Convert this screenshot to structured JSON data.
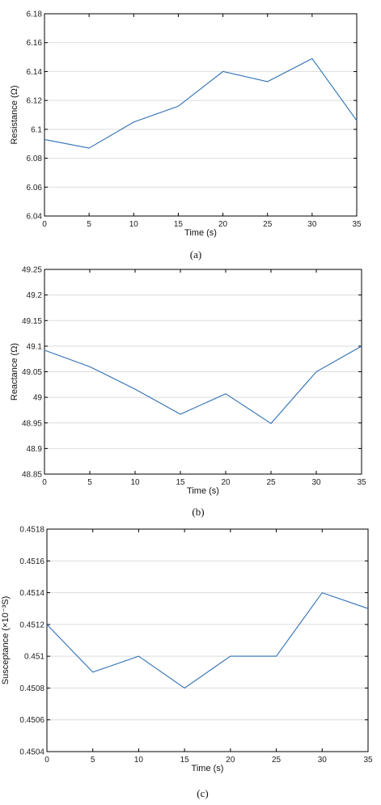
{
  "chart_data": [
    {
      "type": "line",
      "caption": "(a)",
      "xlabel": "Time (s)",
      "ylabel": "Resistance (Ω)",
      "xlim": [
        0,
        35
      ],
      "ylim": [
        6.04,
        6.18
      ],
      "xticks": [
        "0",
        "5",
        "10",
        "15",
        "20",
        "25",
        "30",
        "35"
      ],
      "yticks": [
        "6.04",
        "6.06",
        "6.08",
        "6.1",
        "6.12",
        "6.14",
        "6.16",
        "6.18"
      ],
      "x": [
        0,
        5,
        10,
        15,
        20,
        25,
        30,
        35
      ],
      "y": [
        6.093,
        6.087,
        6.105,
        6.116,
        6.14,
        6.133,
        6.149,
        6.106
      ],
      "grid": "horizontal",
      "line_color": "#2e6fb5"
    },
    {
      "type": "line",
      "caption": "(b)",
      "xlabel": "Time (s)",
      "ylabel": "Reactance (Ω)",
      "xlim": [
        0,
        35
      ],
      "ylim": [
        48.85,
        49.25
      ],
      "xticks": [
        "0",
        "5",
        "10",
        "15",
        "20",
        "25",
        "30",
        "35"
      ],
      "yticks": [
        "48.85",
        "48.9",
        "48.95",
        "49",
        "49.05",
        "49.1",
        "49.15",
        "49.2",
        "49.25"
      ],
      "x": [
        0,
        5,
        10,
        15,
        20,
        25,
        30,
        35
      ],
      "y": [
        49.092,
        49.06,
        49.016,
        48.967,
        49.007,
        48.949,
        49.05,
        49.1
      ],
      "grid": "horizontal",
      "line_color": "#2e6fb5"
    },
    {
      "type": "line",
      "caption": "(c)",
      "xlabel": "Time (s)",
      "ylabel": "Susceptance (×10⁻³S)",
      "xlim": [
        0,
        35
      ],
      "ylim": [
        0.4504,
        0.4518
      ],
      "xticks": [
        "0",
        "5",
        "10",
        "15",
        "20",
        "25",
        "30",
        "35"
      ],
      "yticks": [
        "0.4504",
        "0.4506",
        "0.4508",
        "0.451",
        "0.4512",
        "0.4514",
        "0.4516",
        "0.4518"
      ],
      "x": [
        0,
        5,
        10,
        15,
        20,
        25,
        30,
        35
      ],
      "y": [
        0.4512,
        0.4509,
        0.451,
        0.4508,
        0.451,
        0.451,
        0.4514,
        0.4513
      ],
      "grid": "horizontal",
      "line_color": "#2e6fb5"
    }
  ]
}
